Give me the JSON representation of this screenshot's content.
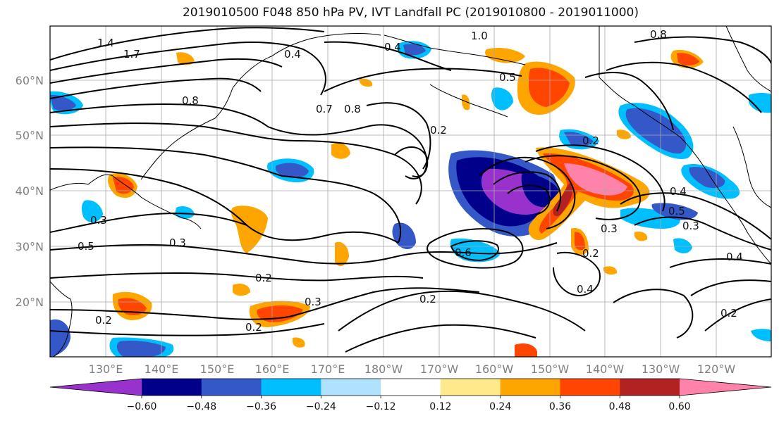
{
  "title": "2019010500 F048 850 hPa PV, IVT Landfall PC (2019010800 - 2019011000)",
  "lat_labels": [
    "60°N",
    "50°N",
    "40°N",
    "30°N",
    "20°N"
  ],
  "lon_labels": [
    "130°E",
    "140°E",
    "150°E",
    "160°E",
    "170°E",
    "180°W",
    "170°W",
    "160°W",
    "150°W",
    "140°W",
    "130°W",
    "120°W"
  ],
  "contour_labels": [
    "1.4",
    "1.7",
    "0.8",
    "1.0",
    "0.8",
    "0.5",
    "0.4",
    "0.7",
    "0.8",
    "0.2",
    "0.2",
    "0.4",
    "0.5",
    "0.3",
    "0.6",
    "0.3",
    "0.2",
    "0.2",
    "0.4",
    "0.2",
    "0.3",
    "0.2",
    "0.2",
    "0.4",
    "0.5",
    "0.3",
    "0.2",
    "0.4",
    "0.3"
  ],
  "colorbar": {
    "ticks": [
      "−0.60",
      "−0.48",
      "−0.36",
      "−0.24",
      "−0.12",
      "0.12",
      "0.24",
      "0.36",
      "0.48",
      "0.60"
    ],
    "colors": [
      "#9932cc",
      "#00008b",
      "#3558c8",
      "#00bfff",
      "#b0e2ff",
      "#ffffff",
      "#ffe98a",
      "#ffa500",
      "#ff4500",
      "#b22222",
      "#ff82ab"
    ]
  }
}
